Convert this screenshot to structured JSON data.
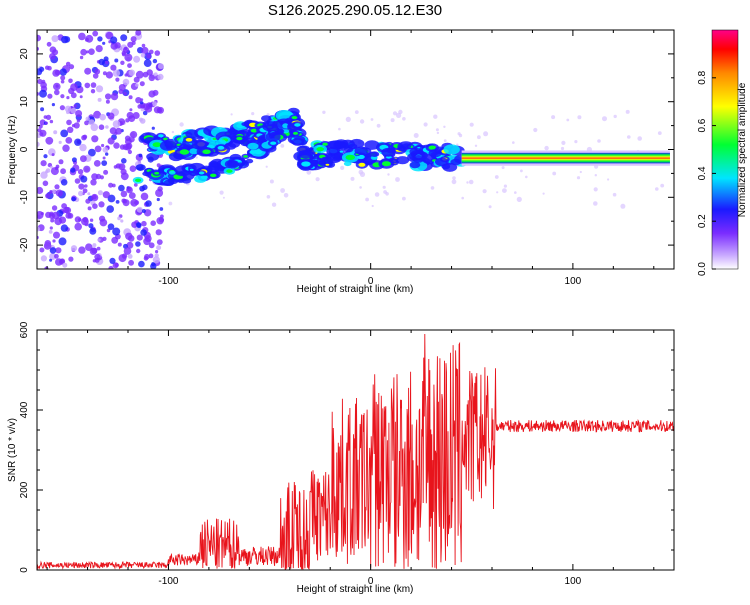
{
  "page_title": "S126.2025.290.05.12.E30",
  "chart_data": [
    {
      "type": "heatmap",
      "title": "S126.2025.290.05.12.E30",
      "xlabel": "Height of straight line (km)",
      "ylabel": "Frequency (Hz)",
      "xlim": [
        -165,
        150
      ],
      "ylim": [
        -25,
        25
      ],
      "xticks": [
        -100,
        0,
        100
      ],
      "yticks": [
        -20,
        -10,
        0,
        10,
        20
      ],
      "ridge": [
        {
          "x": -110,
          "y": 0.5
        },
        {
          "x": -95,
          "y": 0.8
        },
        {
          "x": -85,
          "y": 1.5
        },
        {
          "x": -75,
          "y": 2
        },
        {
          "x": -65,
          "y": 3
        },
        {
          "x": -55,
          "y": 4
        },
        {
          "x": -45,
          "y": 5
        },
        {
          "x": -38,
          "y": 6
        },
        {
          "x": -33,
          "y": -2
        },
        {
          "x": -25,
          "y": -1
        },
        {
          "x": -15,
          "y": -1
        },
        {
          "x": 0,
          "y": -1
        },
        {
          "x": 15,
          "y": -1
        },
        {
          "x": 30,
          "y": -1.5
        },
        {
          "x": 45,
          "y": -1.5
        }
      ],
      "lower_ridge": [
        {
          "x": -115,
          "y": -5
        },
        {
          "x": -100,
          "y": -5.5
        },
        {
          "x": -85,
          "y": -5
        },
        {
          "x": -72,
          "y": -4
        },
        {
          "x": -60,
          "y": -1
        },
        {
          "x": -52,
          "y": 1
        },
        {
          "x": -45,
          "y": 3
        }
      ],
      "flat_band": {
        "x_start": 45,
        "x_end": 148,
        "y": -1.8
      },
      "colorbar": {
        "label": "Normalized spectral amplitude",
        "ticks": [
          "0.0",
          "0.2",
          "0.4",
          "0.6",
          "0.8"
        ],
        "range": [
          0,
          1
        ]
      }
    },
    {
      "type": "line",
      "xlabel": "Height of straight line (km)",
      "ylabel": "SNR (10 * v/v)",
      "xlim": [
        -165,
        150
      ],
      "ylim": [
        0,
        600
      ],
      "xticks": [
        -100,
        0,
        100
      ],
      "yticks": [
        0,
        200,
        400,
        600
      ],
      "series": [
        {
          "name": "SNR",
          "color": "#e8141c",
          "segments": [
            {
              "x0": -165,
              "x1": -100,
              "base": 12,
              "amp": 8
            },
            {
              "x0": -100,
              "x1": -85,
              "base": 25,
              "amp": 15
            },
            {
              "x0": -85,
              "x1": -65,
              "base": 60,
              "amp": 70
            },
            {
              "x0": -65,
              "x1": -45,
              "base": 35,
              "amp": 25
            },
            {
              "x0": -45,
              "x1": -30,
              "base": 80,
              "amp": 150
            },
            {
              "x0": -30,
              "x1": -20,
              "base": 140,
              "amp": 120
            },
            {
              "x0": -20,
              "x1": 0,
              "base": 220,
              "amp": 210
            },
            {
              "x0": 0,
              "x1": 10,
              "base": 250,
              "amp": 260
            },
            {
              "x0": 10,
              "x1": 25,
              "base": 250,
              "amp": 280
            },
            {
              "x0": 25,
              "x1": 45,
              "base": 280,
              "amp": 310
            },
            {
              "x0": 45,
              "x1": 62,
              "base": 330,
              "amp": 180
            },
            {
              "x0": 62,
              "x1": 150,
              "base": 360,
              "amp": 15
            }
          ]
        }
      ]
    }
  ]
}
